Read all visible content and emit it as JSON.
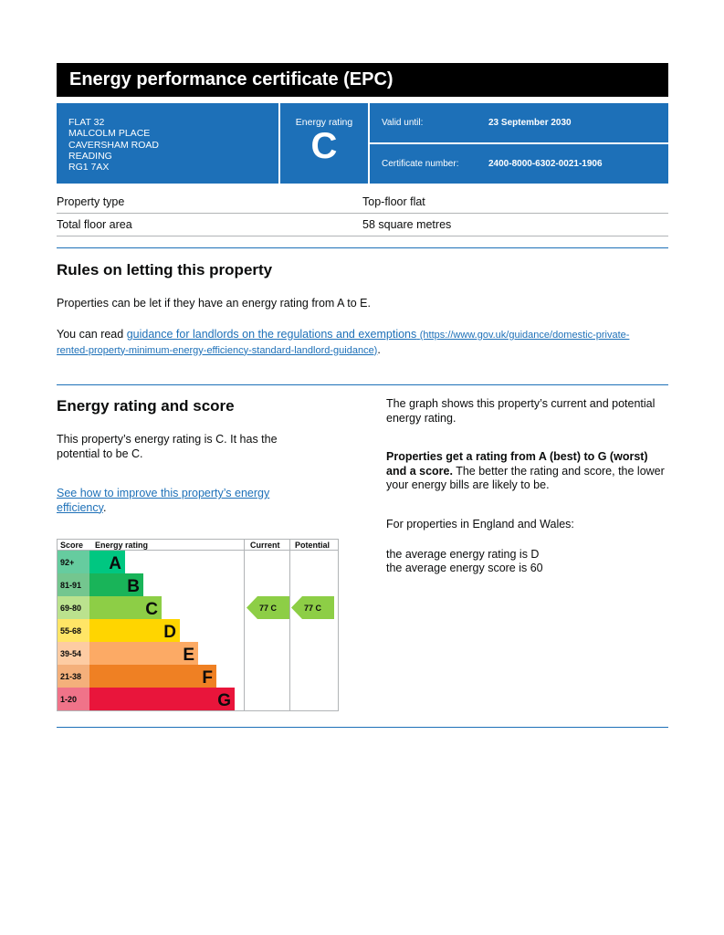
{
  "title": "Energy performance certificate (EPC)",
  "address": [
    "FLAT 32",
    "MALCOLM PLACE",
    "CAVERSHAM ROAD",
    "READING",
    "RG1 7AX"
  ],
  "energy_rating": {
    "label": "Energy rating",
    "value": "C"
  },
  "valid_until": {
    "label": "Valid until:",
    "value": "23 September 2030"
  },
  "certificate_number": {
    "label": "Certificate number:",
    "value": "2400-8000-6302-0021-1906"
  },
  "property": [
    {
      "label": "Property type",
      "value": "Top-floor flat"
    },
    {
      "label": "Total floor area",
      "value": "58 square metres"
    }
  ],
  "rules": {
    "heading": "Rules on letting this property",
    "p1": "Properties can be let if they have an energy rating from A to E.",
    "p2_prefix": "You can read ",
    "link_text": "guidance for landlords on the regulations and exemptions",
    "link_url": "(https://www.gov.uk/guidance/domestic-private-rented-property-minimum-energy-efficiency-standard-landlord-guidance)",
    "p2_suffix": "."
  },
  "score": {
    "heading": "Energy rating and score",
    "p1": "This property’s energy rating is C. It has the potential to be C.",
    "improve_link": "See how to improve this property’s energy efficiency",
    "improve_suffix": ".",
    "right_p1": "The graph shows this property’s current and potential energy rating.",
    "right_bold": "Properties get a rating from A (best) to G (worst) and a score.",
    "right_p2": " The better the rating and score, the lower your energy bills are likely to be.",
    "right_p3": "For properties in England and Wales:",
    "right_p4": "the average energy rating is D",
    "right_p5": "the average energy score is 60"
  },
  "chart_data": {
    "type": "table",
    "headers": [
      "Score",
      "Energy rating",
      "Current",
      "Potential"
    ],
    "bands": [
      {
        "score": "92+",
        "letter": "A",
        "color": "#00c781",
        "score_bg": "#66cc9f"
      },
      {
        "score": "81-91",
        "letter": "B",
        "color": "#19b459",
        "score_bg": "#74c68f"
      },
      {
        "score": "69-80",
        "letter": "C",
        "color": "#8dce46",
        "score_bg": "#bbe28e"
      },
      {
        "score": "55-68",
        "letter": "D",
        "color": "#ffd500",
        "score_bg": "#ffe566"
      },
      {
        "score": "39-54",
        "letter": "E",
        "color": "#fcaa65",
        "score_bg": "#fdcca3"
      },
      {
        "score": "21-38",
        "letter": "F",
        "color": "#ef8023",
        "score_bg": "#f4b07b"
      },
      {
        "score": "1-20",
        "letter": "G",
        "color": "#e9153b",
        "score_bg": "#f07389"
      }
    ],
    "current": {
      "score": 77,
      "band": "C",
      "label": "77  C"
    },
    "potential": {
      "score": 77,
      "band": "C",
      "label": "77  C"
    }
  }
}
